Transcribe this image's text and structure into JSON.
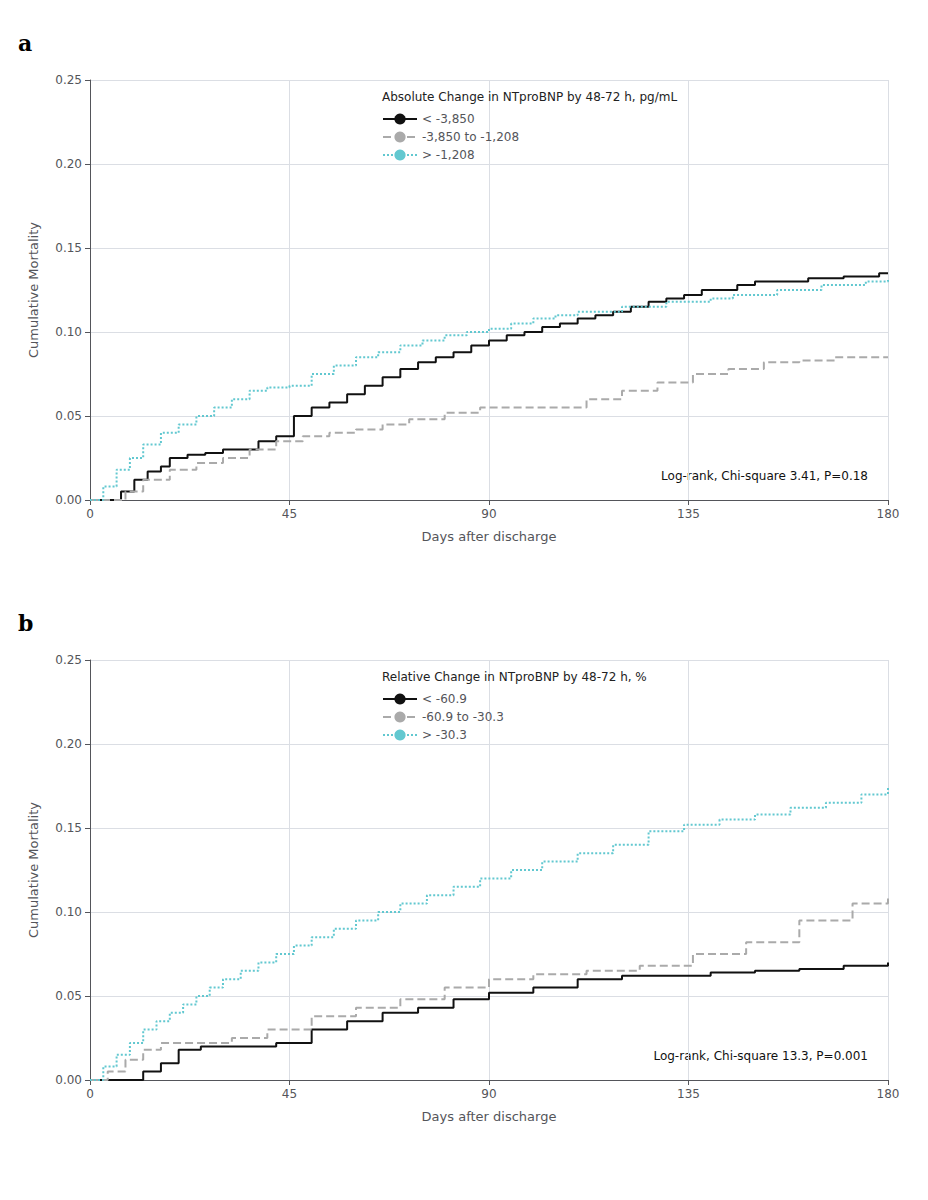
{
  "chart_data": [
    {
      "type": "line",
      "panel_label": "a",
      "title": "Absolute Change in NTproBNP by 48-72 h, pg/mL",
      "xlabel": "Days after discharge",
      "ylabel": "Cumulative Mortality",
      "annotations": [
        "Log-rank, Chi-square 3.41, P=0.18"
      ],
      "xlim": [
        0,
        180
      ],
      "xticks": [
        0,
        45,
        90,
        135,
        180
      ],
      "ylim": [
        0.0,
        0.25
      ],
      "yticks": [
        {
          "value": 0.0,
          "label": "0.00"
        },
        {
          "value": 0.05,
          "label": "0.05"
        },
        {
          "value": 0.1,
          "label": "0.10"
        },
        {
          "value": 0.15,
          "label": "0.15"
        },
        {
          "value": 0.2,
          "label": "0.20"
        },
        {
          "value": 0.25,
          "label": "0.25"
        }
      ],
      "grid": true,
      "legend": "upper center",
      "series": [
        {
          "name": "< -3,850",
          "color": "#111111",
          "line_style": "solid",
          "x": [
            0,
            4,
            7,
            10,
            13,
            16,
            18,
            22,
            26,
            30,
            34,
            38,
            42,
            46,
            50,
            54,
            58,
            62,
            66,
            70,
            74,
            78,
            82,
            86,
            90,
            94,
            98,
            102,
            106,
            110,
            114,
            118,
            122,
            126,
            130,
            134,
            138,
            142,
            146,
            150,
            154,
            158,
            162,
            166,
            170,
            174,
            178,
            180
          ],
          "values": [
            0.0,
            0.0,
            0.005,
            0.012,
            0.017,
            0.02,
            0.025,
            0.027,
            0.028,
            0.03,
            0.03,
            0.035,
            0.038,
            0.05,
            0.055,
            0.058,
            0.063,
            0.068,
            0.073,
            0.078,
            0.082,
            0.085,
            0.088,
            0.092,
            0.095,
            0.098,
            0.1,
            0.103,
            0.105,
            0.108,
            0.11,
            0.112,
            0.115,
            0.118,
            0.12,
            0.122,
            0.125,
            0.125,
            0.128,
            0.13,
            0.13,
            0.13,
            0.132,
            0.132,
            0.133,
            0.133,
            0.135,
            0.135
          ]
        },
        {
          "name": "-3,850 to -1,208",
          "color": "#aaaaaa",
          "line_style": "dashed",
          "x": [
            0,
            5,
            8,
            12,
            18,
            24,
            30,
            36,
            42,
            48,
            54,
            60,
            66,
            72,
            80,
            88,
            96,
            104,
            112,
            120,
            128,
            136,
            144,
            152,
            160,
            168,
            176,
            180
          ],
          "values": [
            0.0,
            0.0,
            0.005,
            0.012,
            0.018,
            0.022,
            0.025,
            0.03,
            0.035,
            0.038,
            0.04,
            0.042,
            0.045,
            0.048,
            0.052,
            0.055,
            0.055,
            0.055,
            0.06,
            0.065,
            0.07,
            0.075,
            0.078,
            0.082,
            0.083,
            0.085,
            0.085,
            0.085
          ]
        },
        {
          "name": "> -1,208",
          "color": "#62c8d0",
          "line_style": "dotted",
          "x": [
            0,
            3,
            6,
            9,
            12,
            16,
            20,
            24,
            28,
            32,
            36,
            40,
            45,
            50,
            55,
            60,
            65,
            70,
            75,
            80,
            85,
            90,
            95,
            100,
            105,
            110,
            115,
            120,
            125,
            130,
            135,
            140,
            145,
            150,
            155,
            160,
            165,
            170,
            175,
            180
          ],
          "values": [
            0.0,
            0.008,
            0.018,
            0.025,
            0.033,
            0.04,
            0.045,
            0.05,
            0.055,
            0.06,
            0.065,
            0.067,
            0.068,
            0.075,
            0.08,
            0.085,
            0.088,
            0.092,
            0.095,
            0.098,
            0.1,
            0.102,
            0.105,
            0.108,
            0.11,
            0.112,
            0.112,
            0.115,
            0.115,
            0.118,
            0.118,
            0.12,
            0.122,
            0.122,
            0.125,
            0.125,
            0.128,
            0.128,
            0.13,
            0.132
          ]
        }
      ]
    },
    {
      "type": "line",
      "panel_label": "b",
      "title": "Relative Change in NTproBNP by 48-72 h, %",
      "xlabel": "Days after discharge",
      "ylabel": "Cumulative Mortality",
      "annotations": [
        "Log-rank, Chi-square 13.3, P=0.001"
      ],
      "xlim": [
        0,
        180
      ],
      "xticks": [
        0,
        45,
        90,
        135,
        180
      ],
      "ylim": [
        0.0,
        0.25
      ],
      "yticks": [
        {
          "value": 0.0,
          "label": "0.00"
        },
        {
          "value": 0.05,
          "label": "0.05"
        },
        {
          "value": 0.1,
          "label": "0.10"
        },
        {
          "value": 0.15,
          "label": "0.15"
        },
        {
          "value": 0.2,
          "label": "0.20"
        },
        {
          "value": 0.25,
          "label": "0.25"
        }
      ],
      "grid": true,
      "legend": "upper center",
      "series": [
        {
          "name": "< -60.9",
          "color": "#111111",
          "line_style": "solid",
          "x": [
            0,
            8,
            12,
            16,
            20,
            25,
            30,
            36,
            42,
            50,
            58,
            66,
            74,
            82,
            90,
            100,
            110,
            120,
            130,
            140,
            150,
            160,
            170,
            180
          ],
          "values": [
            0.0,
            0.0,
            0.005,
            0.01,
            0.018,
            0.02,
            0.02,
            0.02,
            0.022,
            0.03,
            0.035,
            0.04,
            0.043,
            0.048,
            0.052,
            0.055,
            0.06,
            0.062,
            0.062,
            0.064,
            0.065,
            0.066,
            0.068,
            0.07
          ]
        },
        {
          "name": "-60.9 to -30.3",
          "color": "#aaaaaa",
          "line_style": "dashed",
          "x": [
            0,
            4,
            8,
            12,
            16,
            20,
            26,
            32,
            40,
            50,
            60,
            70,
            80,
            90,
            100,
            112,
            124,
            136,
            148,
            160,
            172,
            180
          ],
          "values": [
            0.0,
            0.005,
            0.012,
            0.018,
            0.022,
            0.022,
            0.022,
            0.025,
            0.03,
            0.038,
            0.043,
            0.048,
            0.055,
            0.06,
            0.063,
            0.065,
            0.068,
            0.075,
            0.082,
            0.095,
            0.105,
            0.108
          ]
        },
        {
          "name": "> -30.3",
          "color": "#62c8d0",
          "line_style": "dotted",
          "x": [
            0,
            3,
            6,
            9,
            12,
            15,
            18,
            21,
            24,
            27,
            30,
            34,
            38,
            42,
            46,
            50,
            55,
            60,
            65,
            70,
            76,
            82,
            88,
            95,
            102,
            110,
            118,
            126,
            134,
            142,
            150,
            158,
            166,
            174,
            180
          ],
          "values": [
            0.0,
            0.008,
            0.015,
            0.022,
            0.03,
            0.035,
            0.04,
            0.045,
            0.05,
            0.055,
            0.06,
            0.065,
            0.07,
            0.075,
            0.08,
            0.085,
            0.09,
            0.095,
            0.1,
            0.105,
            0.11,
            0.115,
            0.12,
            0.125,
            0.13,
            0.135,
            0.14,
            0.148,
            0.152,
            0.155,
            0.158,
            0.162,
            0.165,
            0.17,
            0.175
          ]
        }
      ]
    }
  ]
}
